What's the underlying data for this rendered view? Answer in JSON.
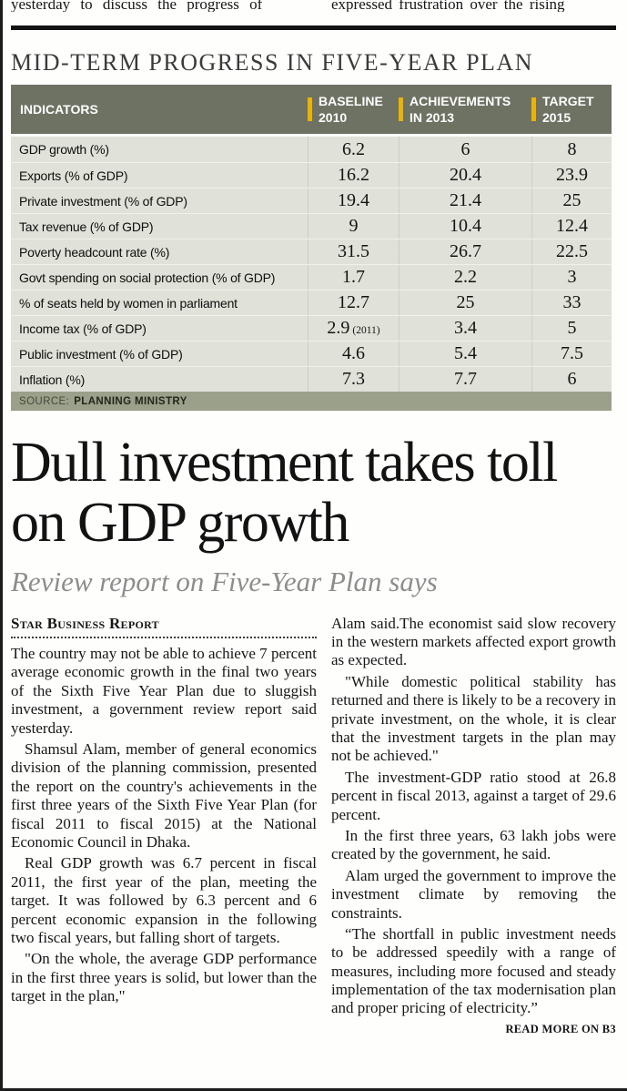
{
  "page": {
    "top_left_fragment": "yesterday to discuss the progress of",
    "top_right_fragment": "expressed frustration over the rising"
  },
  "table": {
    "title": "MID-TERM PROGRESS IN FIVE-YEAR PLAN",
    "col_headers": {
      "indicators": "INDICATORS",
      "baseline": "BASELINE\n2010",
      "achievements": "ACHIEVEMENTS\nIN 2013",
      "target": "TARGET\n2015"
    },
    "rows": [
      {
        "indicator": "GDP growth (%)",
        "baseline": "6.2",
        "achievement": "6",
        "target": "8"
      },
      {
        "indicator": "Exports (% of GDP)",
        "baseline": "16.2",
        "achievement": "20.4",
        "target": "23.9"
      },
      {
        "indicator": "Private investment (% of GDP)",
        "baseline": "19.4",
        "achievement": "21.4",
        "target": "25"
      },
      {
        "indicator": "Tax revenue (% of GDP)",
        "baseline": "9",
        "achievement": "10.4",
        "target": "12.4"
      },
      {
        "indicator": "Poverty headcount rate (%)",
        "baseline": "31.5",
        "achievement": "26.7",
        "target": "22.5"
      },
      {
        "indicator": "Govt spending on social protection (% of GDP)",
        "baseline": "1.7",
        "achievement": "2.2",
        "target": "3"
      },
      {
        "indicator": "% of seats held by women in parliament",
        "baseline": "12.7",
        "achievement": "25",
        "target": "33"
      },
      {
        "indicator": "Income tax (% of GDP)",
        "baseline": "2.9",
        "baseline_note": "(2011)",
        "achievement": "3.4",
        "target": "5"
      },
      {
        "indicator": "Public investment (% of GDP)",
        "baseline": "4.6",
        "achievement": "5.4",
        "target": "7.5"
      },
      {
        "indicator": "Inflation (%)",
        "baseline": "7.3",
        "achievement": "7.7",
        "target": "6"
      }
    ],
    "source_label": "SOURCE:",
    "source_value": "PLANNING MINISTRY",
    "accent_color": "#E8B409",
    "header_bg": "#6E7263",
    "body_bg": "#E0E1D8",
    "source_bg": "#9AA08A"
  },
  "article": {
    "headline": "Dull investment takes toll on GDP growth",
    "subheadline": "Review report on Five-Year Plan says",
    "byline": "Star Business Report",
    "left_paragraphs": [
      "The country may not be able to achieve 7 percent average economic growth in the final two years of the Sixth Five Year Plan due to sluggish investment, a government review report said yesterday.",
      "Shamsul Alam, member of general economics division of the planning commission, presented the report on the country's achievements in the first three years of the Sixth Five Year Plan (for fiscal 2011 to fiscal 2015) at the National Economic Council in Dhaka.",
      "Real GDP growth was 6.7 percent in fiscal 2011, the first year of the plan, meeting the target. It was followed by 6.3 percent and 6 percent economic expansion in the following two fiscal years, but falling short of targets.",
      "\"On the whole, the average GDP performance in the first three years is solid, but lower than the target in the plan,\""
    ],
    "right_paragraphs": [
      "Alam said.The economist said slow recovery in the western markets affected export growth as expected.",
      "\"While domestic political stability has returned and there is likely to be a recovery in private investment, on the whole, it is clear that the investment targets in the plan may not be achieved.\"",
      "The investment-GDP ratio stood at 26.8 percent in fiscal 2013, against a target of 29.6 percent.",
      "In the first three years, 63 lakh jobs were created by the government, he said.",
      "Alam urged the government to improve the investment climate by removing the constraints.",
      "“The shortfall in public investment needs to be addressed speedily with a range of measures, including more focused and steady implementation of the tax modernisation plan and proper pricing of electricity.”"
    ],
    "read_more": "READ MORE ON B3"
  }
}
